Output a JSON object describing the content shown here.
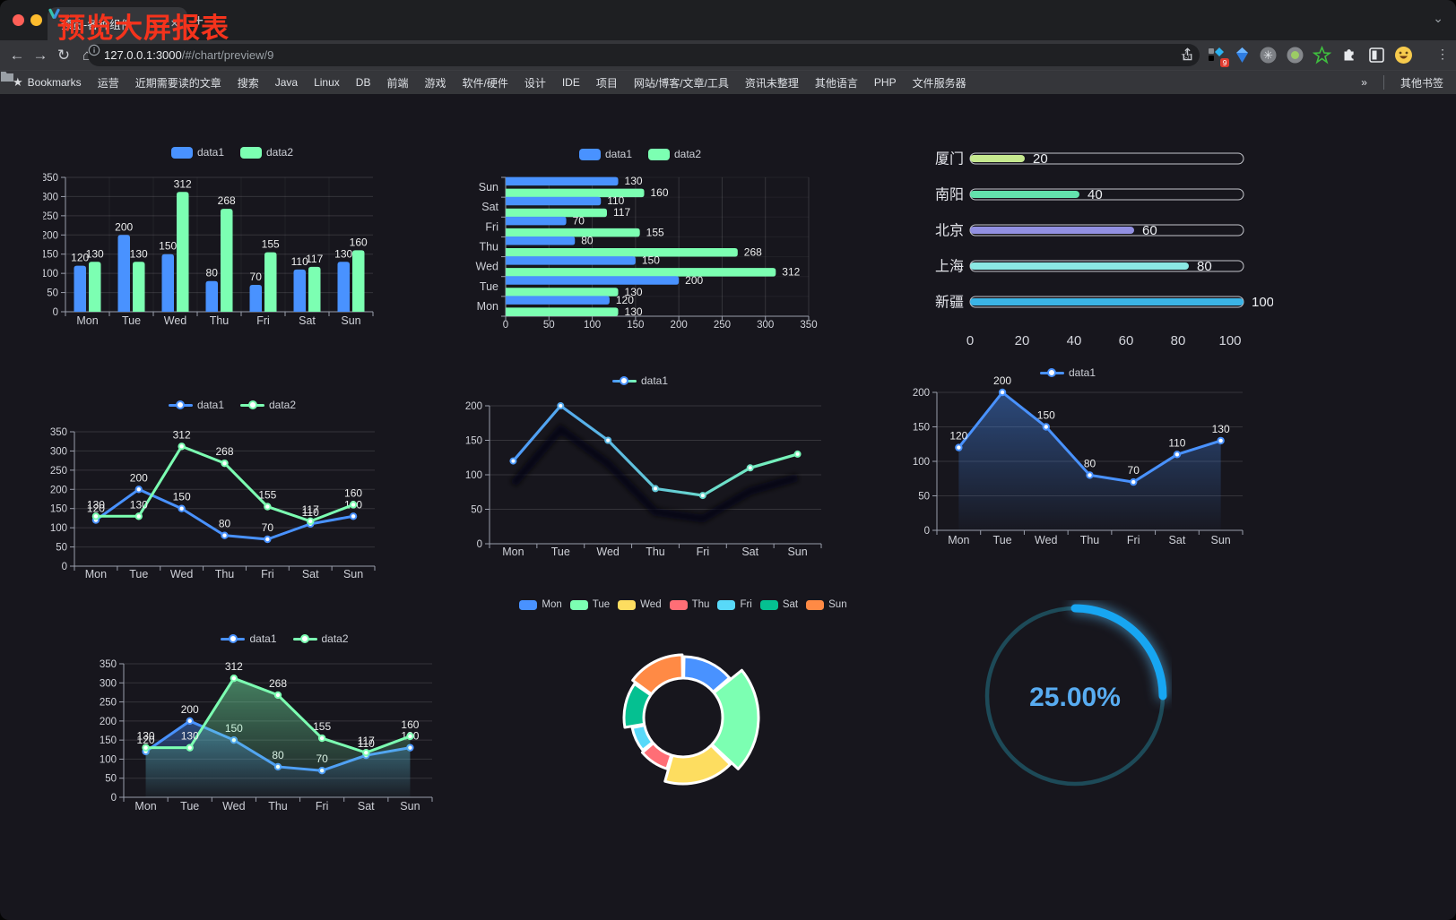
{
  "browser": {
    "tab_title": "预览-各种组件",
    "url_host": "127.0.0.1:3000",
    "url_path": "/#/chart/preview/9",
    "bookmarks_label": "Bookmarks",
    "bookmark_folders": [
      "运营",
      "近期需要读的文章",
      "搜索",
      "Java",
      "Linux",
      "DB",
      "前端",
      "游戏",
      "软件/硬件",
      "设计",
      "IDE",
      "项目",
      "网站/博客/文章/工具",
      "资讯未整理",
      "其他语言",
      "PHP",
      "文件服务器"
    ],
    "extension_badge": "9",
    "icons": {
      "close": "×",
      "new_tab": "+",
      "chevron_down": "⌄",
      "back": "←",
      "forward": "→",
      "reload": "↻",
      "home": "⌂",
      "bookmarks_star": "★",
      "omnibox_star": "☆",
      "menu": "⋮",
      "overflow": "»",
      "other_bookmarks": "其他书签"
    }
  },
  "page": {
    "title": "预览大屏报表",
    "title_color": "#f5331c",
    "background": "#17161d"
  },
  "chart_data": [
    {
      "id": "bar-vertical",
      "type": "bar",
      "title": "",
      "categories": [
        "Mon",
        "Tue",
        "Wed",
        "Thu",
        "Fri",
        "Sat",
        "Sun"
      ],
      "series": [
        {
          "name": "data1",
          "color": "#4992ff",
          "values": [
            120,
            200,
            150,
            80,
            70,
            110,
            130
          ]
        },
        {
          "name": "data2",
          "color": "#7cffb2",
          "values": [
            130,
            130,
            312,
            268,
            155,
            117,
            160
          ]
        }
      ],
      "ylim": [
        0,
        350
      ],
      "ytick_step": 50,
      "legend_position": "top",
      "grid": true,
      "show_labels": true
    },
    {
      "id": "bar-horizontal",
      "type": "hbar",
      "title": "",
      "categories": [
        "Mon",
        "Tue",
        "Wed",
        "Thu",
        "Fri",
        "Sat",
        "Sun"
      ],
      "series": [
        {
          "name": "data1",
          "color": "#4992ff",
          "values": [
            120,
            200,
            150,
            80,
            70,
            110,
            130
          ]
        },
        {
          "name": "data2",
          "color": "#7cffb2",
          "values": [
            130,
            130,
            312,
            268,
            155,
            117,
            160
          ]
        }
      ],
      "xlim": [
        0,
        350
      ],
      "xtick_step": 50,
      "legend_position": "top",
      "grid": true,
      "show_labels": true
    },
    {
      "id": "progress-bars",
      "type": "progress",
      "items": [
        {
          "label": "厦门",
          "value": 20,
          "color": "#c6e98f"
        },
        {
          "label": "南阳",
          "value": 40,
          "color": "#63e2ad"
        },
        {
          "label": "北京",
          "value": 60,
          "color": "#9290e2"
        },
        {
          "label": "上海",
          "value": 80,
          "color": "#8be8e3"
        },
        {
          "label": "新疆",
          "value": 100,
          "color": "#3bb4e6"
        }
      ],
      "axis_ticks": [
        0,
        20,
        40,
        60,
        80,
        100
      ],
      "max": 100
    },
    {
      "id": "line-two-series",
      "type": "line",
      "categories": [
        "Mon",
        "Tue",
        "Wed",
        "Thu",
        "Fri",
        "Sat",
        "Sun"
      ],
      "series": [
        {
          "name": "data1",
          "color": "#4992ff",
          "values": [
            120,
            200,
            150,
            80,
            70,
            110,
            130
          ]
        },
        {
          "name": "data2",
          "color": "#7cffb2",
          "values": [
            130,
            130,
            312,
            268,
            155,
            117,
            160
          ]
        }
      ],
      "ylim": [
        0,
        350
      ],
      "ytick_step": 50,
      "legend_position": "top",
      "show_labels": true
    },
    {
      "id": "line-gradient",
      "type": "line-gradient",
      "categories": [
        "Mon",
        "Tue",
        "Wed",
        "Thu",
        "Fri",
        "Sat",
        "Sun"
      ],
      "series": [
        {
          "name": "data1",
          "gradient": [
            "#4992ff",
            "#7cffb2"
          ],
          "values": [
            120,
            200,
            150,
            80,
            70,
            110,
            130
          ]
        }
      ],
      "ylim": [
        0,
        200
      ],
      "ytick_step": 50,
      "legend_position": "top",
      "show_labels": false
    },
    {
      "id": "area-single",
      "type": "area",
      "categories": [
        "Mon",
        "Tue",
        "Wed",
        "Thu",
        "Fri",
        "Sat",
        "Sun"
      ],
      "series": [
        {
          "name": "data1",
          "color": "#4992ff",
          "values": [
            120,
            200,
            150,
            80,
            70,
            110,
            130
          ]
        }
      ],
      "ylim": [
        0,
        200
      ],
      "ytick_step": 50,
      "legend_position": "top",
      "show_labels": true
    },
    {
      "id": "area-two-series",
      "type": "area",
      "categories": [
        "Mon",
        "Tue",
        "Wed",
        "Thu",
        "Fri",
        "Sat",
        "Sun"
      ],
      "series": [
        {
          "name": "data1",
          "color": "#4992ff",
          "values": [
            120,
            200,
            150,
            80,
            70,
            110,
            130
          ]
        },
        {
          "name": "data2",
          "color": "#7cffb2",
          "values": [
            130,
            130,
            312,
            268,
            155,
            117,
            160
          ]
        }
      ],
      "ylim": [
        0,
        350
      ],
      "ytick_step": 50,
      "legend_position": "top",
      "show_labels": true
    },
    {
      "id": "rose-donut",
      "type": "pie",
      "subtype": "rose-doughnut",
      "categories": [
        "Mon",
        "Tue",
        "Wed",
        "Thu",
        "Fri",
        "Sat",
        "Sun"
      ],
      "values": [
        120,
        200,
        150,
        80,
        70,
        110,
        130
      ],
      "colors": [
        "#4992ff",
        "#7cffb2",
        "#fddd60",
        "#ff6e76",
        "#58d9f9",
        "#05c091",
        "#ff8a45"
      ],
      "legend_position": "top"
    },
    {
      "id": "gauge",
      "type": "gauge",
      "value_text": "25.00%",
      "percent": 25,
      "color": "#17a6f2",
      "track_color": "#1d4a58",
      "text_color": "#58acf1"
    }
  ]
}
